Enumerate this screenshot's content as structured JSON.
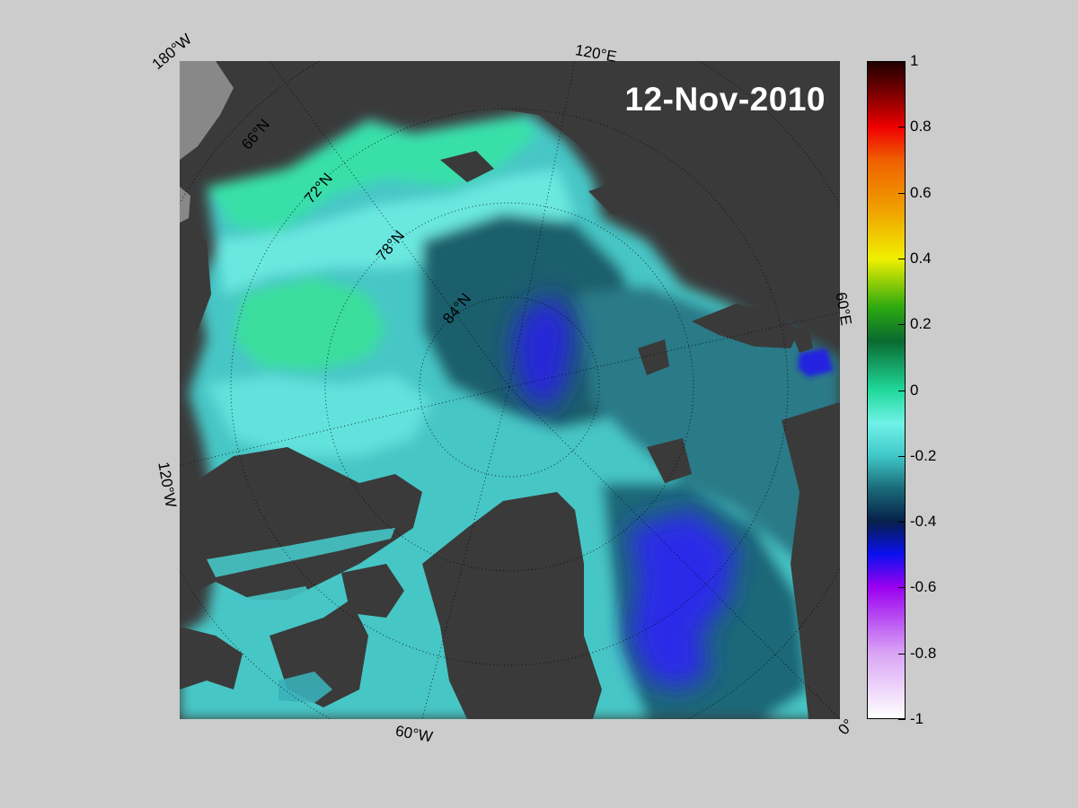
{
  "map": {
    "date": "12-Nov-2010",
    "longitude_labels": {
      "w180": "180°W",
      "e120": "120°E",
      "e60": "60°E",
      "w120": "120°W",
      "w60": "60°W",
      "zero": "0°"
    },
    "latitude_labels": {
      "n66": "66°N",
      "n72": "72°N",
      "n78": "78°N",
      "n84": "84°N"
    },
    "colors": {
      "land": "#3a3a3a",
      "grey_land": "#888888",
      "high": "#2ee8a0",
      "mid": "#50e8e0",
      "low": "#1c5a66",
      "lowest": "#2020e8"
    }
  },
  "colorbar": {
    "ticks": [
      "1",
      "0.8",
      "0.6",
      "0.4",
      "0.2",
      "0",
      "-0.2",
      "-0.4",
      "-0.6",
      "-0.8",
      "-1"
    ],
    "range": [
      -1,
      1
    ],
    "stops": [
      {
        "value": -1.0,
        "color": "#ffffff"
      },
      {
        "value": -0.8,
        "color": "#d9a3f5"
      },
      {
        "value": -0.6,
        "color": "#9a00f0"
      },
      {
        "value": -0.5,
        "color": "#0a10ee"
      },
      {
        "value": -0.4,
        "color": "#06204a"
      },
      {
        "value": -0.3,
        "color": "#1a6a78"
      },
      {
        "value": -0.2,
        "color": "#40c8c8"
      },
      {
        "value": -0.1,
        "color": "#70f2e8"
      },
      {
        "value": 0.0,
        "color": "#20d89a"
      },
      {
        "value": 0.15,
        "color": "#0a6a30"
      },
      {
        "value": 0.25,
        "color": "#2aa810"
      },
      {
        "value": 0.4,
        "color": "#f0f000"
      },
      {
        "value": 0.55,
        "color": "#f0a000"
      },
      {
        "value": 0.7,
        "color": "#f06000"
      },
      {
        "value": 0.8,
        "color": "#f00000"
      },
      {
        "value": 0.9,
        "color": "#800000"
      },
      {
        "value": 1.0,
        "color": "#200000"
      }
    ]
  }
}
